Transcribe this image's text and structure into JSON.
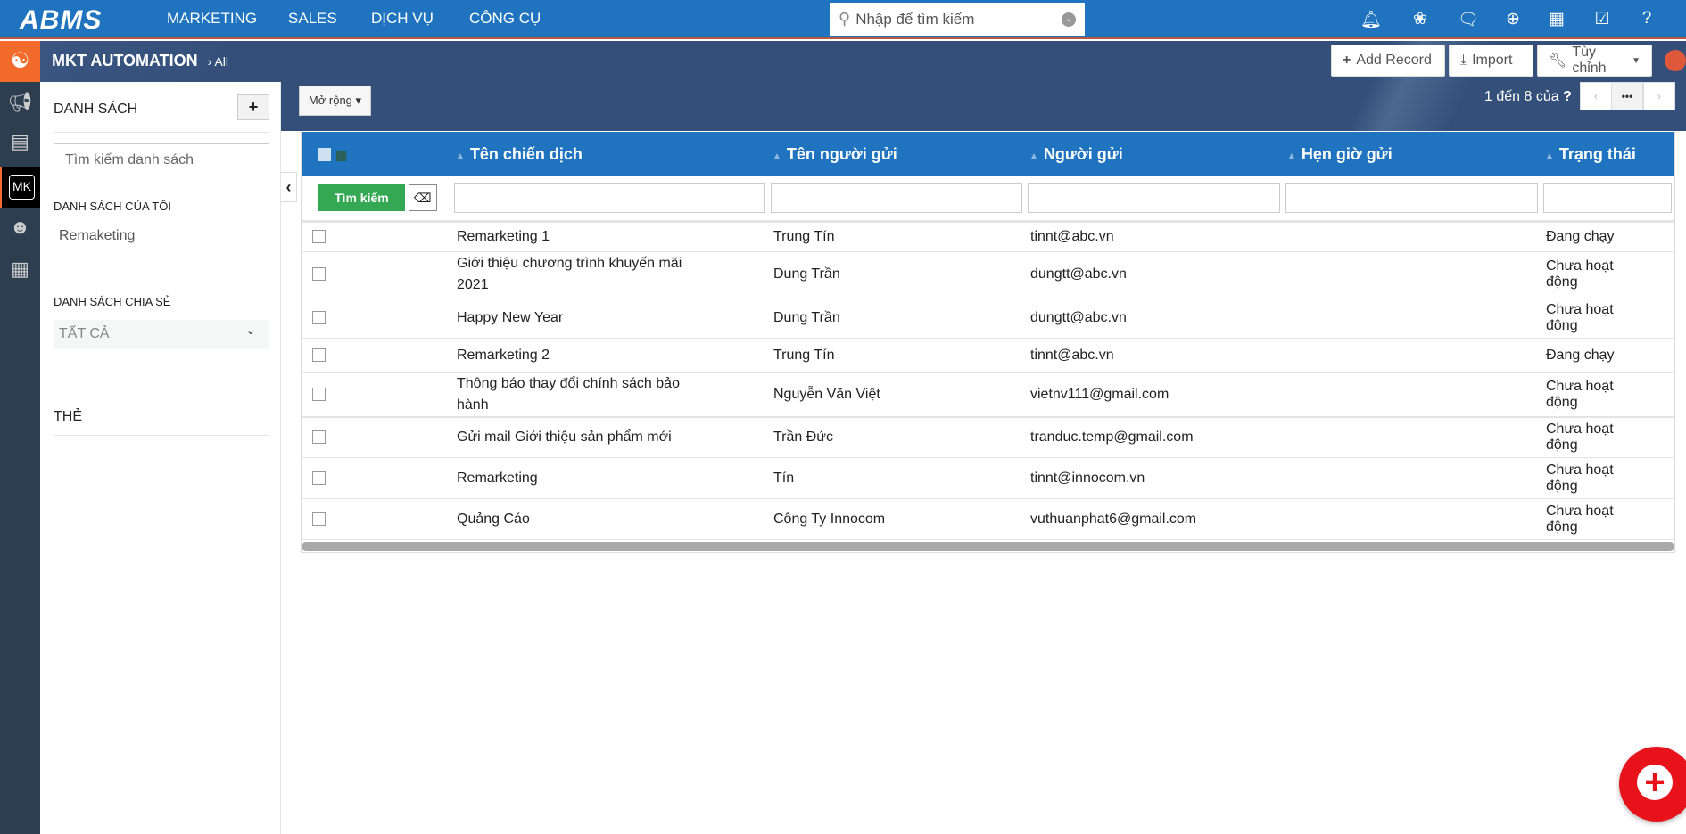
{
  "topbar": {
    "logo": "ABMS",
    "nav": [
      "MARKETING",
      "SALES",
      "DỊCH VỤ",
      "CÔNG CỤ"
    ],
    "search_placeholder": "Nhập để tìm kiếm",
    "icons": [
      "bell-icon",
      "cubes-icon",
      "chat-icon",
      "plus-circle-icon",
      "calendar-icon",
      "checkbox-icon",
      "help-icon"
    ],
    "color": "#1f73bf"
  },
  "header": {
    "module": "MKT AUTOMATION",
    "breadcrumb": "All",
    "add_record": "Add Record",
    "import": "Import",
    "customize": "Tùy chỉnh"
  },
  "rail": {
    "mk": "MK"
  },
  "sidebar": {
    "title": "DANH SÁCH",
    "search_placeholder": "Tìm kiếm danh sách",
    "my_lists": "DANH SÁCH CỦA TÔI",
    "my_items": [
      "Remaketing"
    ],
    "shared": "DANH SÁCH CHIA SẺ",
    "shared_select": "TẤT CẢ",
    "tags": "THẺ"
  },
  "toolbar": {
    "expand": "Mở rộng",
    "pagination": "1 đến 8  của",
    "pagination_unknown": "?",
    "page_more": "•••"
  },
  "table": {
    "search_button": "Tìm kiếm",
    "columns": [
      "Tên chiến dịch",
      "Tên người gửi",
      "Người gửi",
      "Hẹn giờ gửi",
      "Trạng thái"
    ],
    "rows": [
      {
        "name": "Remarketing 1",
        "sender_name": "Trung Tín",
        "sender": "tinnt@abc.vn",
        "schedule": "",
        "status": "Đang chạy"
      },
      {
        "name": "Giới thiệu chương trình khuyến mãi 2021",
        "sender_name": "Dung Trần",
        "sender": "dungtt@abc.vn",
        "schedule": "",
        "status": "Chưa hoạt động"
      },
      {
        "name": "Happy New Year",
        "sender_name": "Dung Trần",
        "sender": "dungtt@abc.vn",
        "schedule": "",
        "status": "Chưa hoạt động"
      },
      {
        "name": "Remarketing 2",
        "sender_name": "Trung Tín",
        "sender": "tinnt@abc.vn",
        "schedule": "",
        "status": "Đang chạy"
      },
      {
        "name": "Thông báo thay đổi chính sách bảo hành",
        "sender_name": "Nguyễn Văn Việt",
        "sender": "vietnv111@gmail.com",
        "schedule": "",
        "status": "Chưa hoạt động"
      },
      {
        "name": "Gửi mail Giới thiệu sản phẩm mới",
        "sender_name": "Trần Đức",
        "sender": "tranduc.temp@gmail.com",
        "schedule": "",
        "status": "Chưa hoạt động"
      },
      {
        "name": "Remarketing",
        "sender_name": "Tín",
        "sender": "tinnt@innocom.vn",
        "schedule": "",
        "status": "Chưa hoạt động"
      },
      {
        "name": "Quảng Cáo",
        "sender_name": "Công Ty Innocom",
        "sender": "vuthuanphat6@gmail.com",
        "schedule": "",
        "status": "Chưa hoạt động"
      }
    ]
  }
}
